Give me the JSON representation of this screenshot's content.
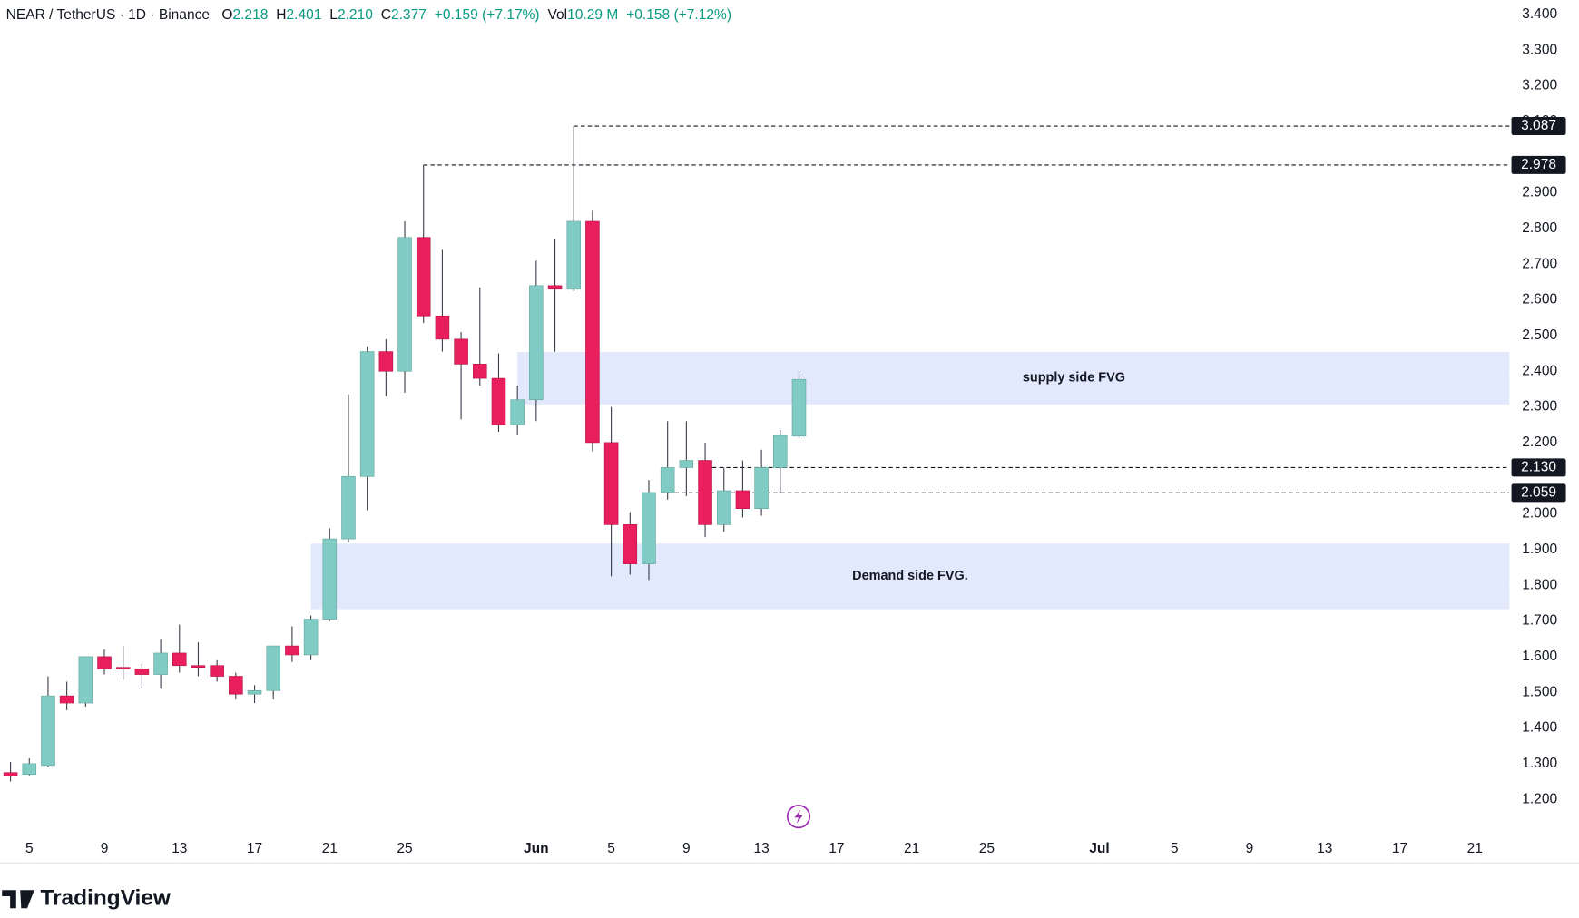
{
  "chart_data": {
    "type": "candlestick",
    "legend": {
      "symbol": "NEAR / TetherUS · 1D · Binance",
      "fields": [
        {
          "label": "O",
          "value": "2.218"
        },
        {
          "label": "H",
          "value": "2.401"
        },
        {
          "label": "L",
          "value": "2.210"
        },
        {
          "label": "C",
          "value": "2.377"
        }
      ],
      "change": "+0.159 (+7.17%)",
      "volume": {
        "label": "Vol",
        "value": "10.29 M"
      },
      "volume_change": "+0.158 (+7.12%)"
    },
    "x": [
      4,
      5,
      6,
      7,
      8,
      9,
      10,
      11,
      12,
      13,
      14,
      15,
      16,
      17,
      18,
      19,
      20,
      21,
      22,
      23,
      24,
      25,
      26,
      27,
      28,
      29,
      30,
      31,
      32,
      33,
      34,
      35,
      36,
      37,
      38,
      39,
      40,
      41,
      42,
      43,
      44,
      45,
      46
    ],
    "open": [
      1.275,
      1.27,
      1.295,
      1.49,
      1.47,
      1.6,
      1.57,
      1.565,
      1.55,
      1.61,
      1.575,
      1.575,
      1.545,
      1.495,
      1.505,
      1.63,
      1.605,
      1.705,
      1.93,
      2.105,
      2.455,
      2.4,
      2.775,
      2.555,
      2.49,
      2.42,
      2.38,
      2.25,
      2.32,
      2.64,
      2.63,
      2.82,
      2.2,
      1.97,
      1.86,
      2.06,
      2.13,
      2.15,
      1.97,
      2.065,
      2.015,
      2.13,
      2.218
    ],
    "high": [
      1.305,
      1.315,
      1.545,
      1.53,
      1.6,
      1.62,
      1.63,
      1.58,
      1.65,
      1.69,
      1.64,
      1.59,
      1.555,
      1.52,
      1.63,
      1.685,
      1.715,
      1.96,
      2.335,
      2.47,
      2.49,
      2.82,
      2.978,
      2.74,
      2.51,
      2.635,
      2.45,
      2.36,
      2.71,
      2.77,
      3.087,
      2.85,
      2.3,
      2.005,
      2.095,
      2.26,
      2.26,
      2.2,
      2.13,
      2.15,
      2.18,
      2.235,
      2.401
    ],
    "low": [
      1.25,
      1.265,
      1.29,
      1.45,
      1.46,
      1.55,
      1.535,
      1.51,
      1.51,
      1.555,
      1.545,
      1.53,
      1.48,
      1.47,
      1.48,
      1.585,
      1.59,
      1.7,
      1.92,
      2.01,
      2.33,
      2.34,
      2.535,
      2.455,
      2.265,
      2.36,
      2.23,
      2.22,
      2.26,
      2.455,
      2.625,
      2.175,
      1.825,
      1.83,
      1.815,
      2.04,
      2.05,
      1.935,
      1.95,
      1.99,
      1.995,
      2.06,
      2.21
    ],
    "close": [
      1.265,
      1.3,
      1.49,
      1.47,
      1.6,
      1.565,
      1.565,
      1.55,
      1.61,
      1.575,
      1.57,
      1.545,
      1.495,
      1.505,
      1.63,
      1.605,
      1.705,
      1.93,
      2.105,
      2.455,
      2.4,
      2.775,
      2.555,
      2.49,
      2.42,
      2.38,
      2.25,
      2.32,
      2.64,
      2.63,
      2.82,
      2.2,
      1.97,
      1.86,
      2.06,
      2.13,
      2.15,
      1.97,
      2.065,
      2.015,
      2.13,
      2.22,
      2.377
    ],
    "up_color": "#80cbc4",
    "down_color": "#e91e5c",
    "xlim": [
      3.44,
      83.84
    ],
    "xticks": [
      {
        "value": 5,
        "label": "5"
      },
      {
        "value": 9,
        "label": "9"
      },
      {
        "value": 13,
        "label": "13"
      },
      {
        "value": 17,
        "label": "17"
      },
      {
        "value": 21,
        "label": "21"
      },
      {
        "value": 25,
        "label": "25"
      },
      {
        "value": 32,
        "label": "Jun"
      },
      {
        "value": 36,
        "label": "5"
      },
      {
        "value": 40,
        "label": "9"
      },
      {
        "value": 44,
        "label": "13"
      },
      {
        "value": 48,
        "label": "17"
      },
      {
        "value": 52,
        "label": "21"
      },
      {
        "value": 56,
        "label": "25"
      },
      {
        "value": 62,
        "label": "Jul"
      },
      {
        "value": 66,
        "label": "5"
      },
      {
        "value": 70,
        "label": "9"
      },
      {
        "value": 74,
        "label": "13"
      },
      {
        "value": 78,
        "label": "17"
      },
      {
        "value": 82,
        "label": "21"
      }
    ],
    "ylim": [
      1.101,
      3.44
    ],
    "yticks": [
      {
        "value": 1.2,
        "label": "1.200"
      },
      {
        "value": 1.3,
        "label": "1.300"
      },
      {
        "value": 1.4,
        "label": "1.400"
      },
      {
        "value": 1.5,
        "label": "1.500"
      },
      {
        "value": 1.6,
        "label": "1.600"
      },
      {
        "value": 1.7,
        "label": "1.700"
      },
      {
        "value": 1.8,
        "label": "1.800"
      },
      {
        "value": 1.9,
        "label": "1.900"
      },
      {
        "value": 2.0,
        "label": "2.000"
      },
      {
        "value": 2.2,
        "label": "2.200"
      },
      {
        "value": 2.3,
        "label": "2.300"
      },
      {
        "value": 2.4,
        "label": "2.400"
      },
      {
        "value": 2.5,
        "label": "2.500"
      },
      {
        "value": 2.6,
        "label": "2.600"
      },
      {
        "value": 2.7,
        "label": "2.700"
      },
      {
        "value": 2.8,
        "label": "2.800"
      },
      {
        "value": 2.9,
        "label": "2.900"
      },
      {
        "value": 3.1,
        "label": "3.100"
      },
      {
        "value": 3.2,
        "label": "3.200"
      },
      {
        "value": 3.3,
        "label": "3.300"
      },
      {
        "value": 3.4,
        "label": "3.400"
      }
    ],
    "levels": [
      {
        "value": 3.087,
        "label": "3.087",
        "from": 34
      },
      {
        "value": 2.978,
        "label": "2.978",
        "from": 26
      },
      {
        "value": 2.13,
        "label": "2.130",
        "from": 41
      },
      {
        "value": 2.059,
        "label": "2.059",
        "from": 39
      }
    ],
    "zones": [
      {
        "label": "supply side FVG",
        "range": [
          2.307,
          2.454
        ],
        "from": 31
      },
      {
        "label": "Demand side FVG.",
        "range": [
          1.733,
          1.917
        ],
        "from": 20
      }
    ],
    "zone_color": "#dde5fb",
    "brand": "TradingView"
  }
}
